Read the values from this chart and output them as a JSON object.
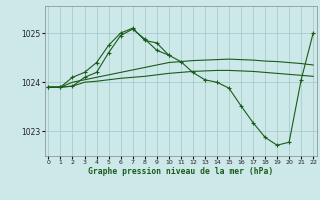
{
  "background_color": "#cce8e8",
  "grid_color": "#a8cccc",
  "line_color": "#1a5c1a",
  "xlabel": "Graphe pression niveau de la mer (hPa)",
  "xlim": [
    -0.3,
    22.3
  ],
  "ylim": [
    1022.5,
    1025.55
  ],
  "yticks": [
    1023,
    1024,
    1025
  ],
  "xticks": [
    0,
    1,
    2,
    3,
    4,
    5,
    6,
    7,
    8,
    9,
    10,
    11,
    12,
    13,
    14,
    15,
    16,
    17,
    18,
    19,
    20,
    21,
    22
  ],
  "lines": [
    {
      "x": [
        0,
        1,
        2,
        3,
        4,
        5,
        6,
        7,
        8,
        9,
        10
      ],
      "y": [
        1023.9,
        1023.9,
        1024.1,
        1024.2,
        1024.4,
        1024.75,
        1025.0,
        1025.1,
        1024.85,
        1024.8,
        1024.55
      ],
      "has_marker": true
    },
    {
      "x": [
        0,
        1,
        2,
        3,
        4,
        5,
        6,
        7,
        8,
        9,
        10,
        11,
        12,
        13,
        14,
        15,
        16,
        17,
        18,
        19,
        20,
        21,
        22
      ],
      "y": [
        1023.9,
        1023.9,
        1024.0,
        1024.05,
        1024.1,
        1024.15,
        1024.2,
        1024.25,
        1024.3,
        1024.35,
        1024.4,
        1024.42,
        1024.44,
        1024.45,
        1024.46,
        1024.47,
        1024.46,
        1024.45,
        1024.43,
        1024.42,
        1024.4,
        1024.38,
        1024.35
      ],
      "has_marker": false
    },
    {
      "x": [
        0,
        1,
        2,
        3,
        4,
        5,
        6,
        7,
        8,
        9,
        10,
        11,
        12,
        13,
        14,
        15,
        16,
        17,
        18,
        19,
        20,
        21,
        22
      ],
      "y": [
        1023.9,
        1023.9,
        1023.92,
        1024.0,
        1024.02,
        1024.05,
        1024.08,
        1024.1,
        1024.12,
        1024.15,
        1024.18,
        1024.2,
        1024.22,
        1024.23,
        1024.24,
        1024.24,
        1024.23,
        1024.22,
        1024.2,
        1024.18,
        1024.16,
        1024.14,
        1024.12
      ],
      "has_marker": false
    },
    {
      "x": [
        0,
        1,
        2,
        3,
        4,
        5,
        6,
        7,
        8,
        9,
        10,
        11,
        12,
        13,
        14,
        15,
        16,
        17,
        18,
        19,
        20,
        21,
        22
      ],
      "y": [
        1023.9,
        1023.9,
        1023.92,
        1024.1,
        1024.2,
        1024.6,
        1024.95,
        1025.08,
        1024.88,
        1024.65,
        1024.55,
        1024.42,
        1024.2,
        1024.05,
        1024.0,
        1023.88,
        1023.52,
        1023.18,
        1022.88,
        1022.72,
        1022.78,
        1024.05,
        1025.0
      ],
      "has_marker": true
    }
  ]
}
